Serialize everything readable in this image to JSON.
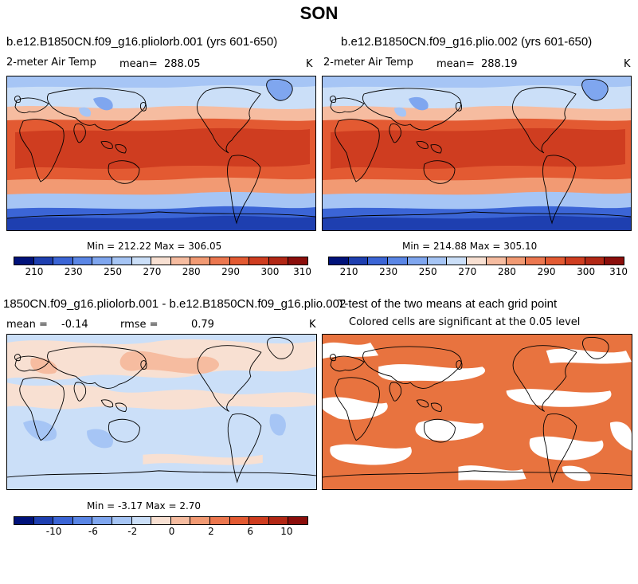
{
  "figure": {
    "title": "SON"
  },
  "chart_data": [
    {
      "type": "heatmap",
      "title": "b.e12.B1850CN.f09_g16.pliolorb.001 (yrs 601-650)",
      "variable": "2-meter Air Temp",
      "units": "K",
      "mean_label": "mean=",
      "mean": "288.05",
      "min_max_text": "Min = 212.22 Max = 306.05",
      "min": 212.22,
      "max": 306.05,
      "colorbar_ticks": [
        "210",
        "230",
        "250",
        "270",
        "280",
        "290",
        "300",
        "310"
      ],
      "colors": [
        "#00127a",
        "#1e3fb0",
        "#3b65d6",
        "#5a86e6",
        "#7fa6ef",
        "#a6c5f5",
        "#cbdff8",
        "#f8e0d2",
        "#f6bca0",
        "#f29a73",
        "#ec774f",
        "#e35a32",
        "#cf3d20",
        "#b22715",
        "#8b0e0b"
      ]
    },
    {
      "type": "heatmap",
      "title": "b.e12.B1850CN.f09_g16.plio.002 (yrs 601-650)",
      "variable": "2-meter Air Temp",
      "units": "K",
      "mean_label": "mean=",
      "mean": "288.19",
      "min_max_text": "Min = 214.88 Max = 305.10",
      "min": 214.88,
      "max": 305.1,
      "colorbar_ticks": [
        "210",
        "230",
        "250",
        "270",
        "280",
        "290",
        "300",
        "310"
      ],
      "colors": [
        "#00127a",
        "#1e3fb0",
        "#3b65d6",
        "#5a86e6",
        "#7fa6ef",
        "#a6c5f5",
        "#cbdff8",
        "#f8e0d2",
        "#f6bca0",
        "#f29a73",
        "#ec774f",
        "#e35a32",
        "#cf3d20",
        "#b22715",
        "#8b0e0b"
      ]
    },
    {
      "type": "heatmap",
      "title": "1850CN.f09_g16.pliolorb.001 - b.e12.B1850CN.f09_g16.plio.002",
      "mean_label": "mean =",
      "mean": "-0.14",
      "rmse_label": "rmse =",
      "rmse": "0.79",
      "units": "K",
      "min_max_text": "Min = -3.17 Max = 2.70",
      "min": -3.17,
      "max": 2.7,
      "colorbar_ticks": [
        "-10",
        "-6",
        "-2",
        "0",
        "2",
        "6",
        "10"
      ],
      "colors": [
        "#00127a",
        "#1e3fb0",
        "#3b65d6",
        "#5a86e6",
        "#7fa6ef",
        "#a6c5f5",
        "#cbdff8",
        "#f8e0d2",
        "#f6bca0",
        "#f29a73",
        "#ec774f",
        "#e35a32",
        "#cf3d20",
        "#b22715",
        "#8b0e0b"
      ]
    },
    {
      "type": "heatmap",
      "title": "T-test of the two means at each grid point",
      "subtitle": "Colored cells are significant at the 0.05 level",
      "significance_level": 0.05,
      "colors": [
        "#e8733f"
      ]
    }
  ]
}
